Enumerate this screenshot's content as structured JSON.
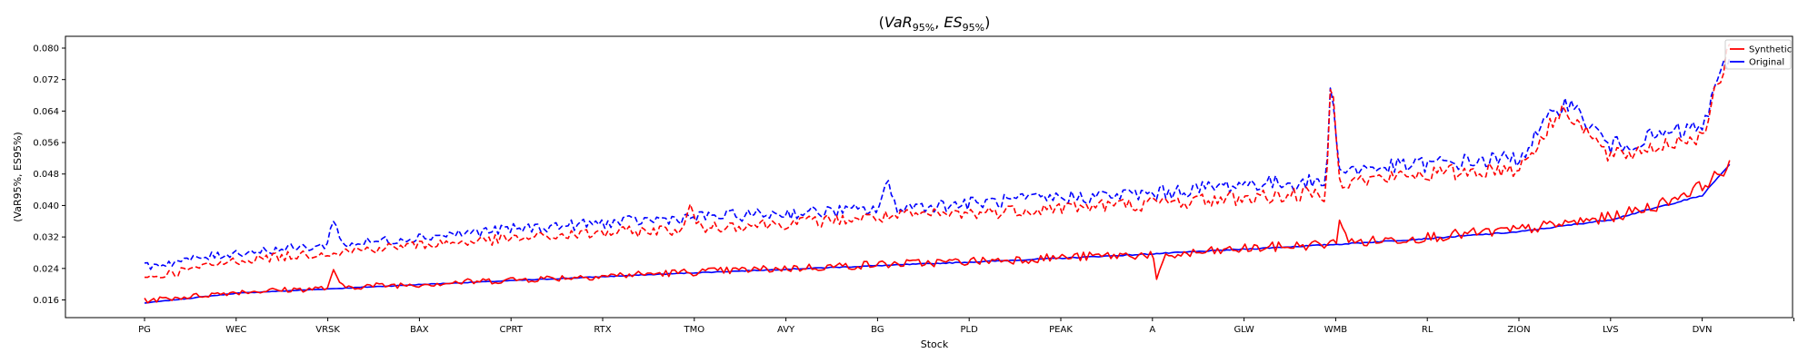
{
  "chart_data": {
    "type": "line",
    "title": "(VaR95%, ES95%)",
    "title_parts": {
      "open": "(",
      "var_main": "VaR",
      "var_sub": "95%",
      "sep": ", ",
      "es_main": "ES",
      "es_sub": "95%",
      "close": ")"
    },
    "xlabel": "Stock",
    "ylabel": "(VaR95%, ES95%)",
    "ylim": [
      0.0115,
      0.083
    ],
    "yticks": [
      "0.016",
      "0.024",
      "0.032",
      "0.040",
      "0.048",
      "0.056",
      "0.064",
      "0.072",
      "0.080"
    ],
    "xtick_labels": [
      "PG",
      "WEC",
      "VRSK",
      "BAX",
      "CPRT",
      "RTX",
      "TMO",
      "AVY",
      "BG",
      "PLD",
      "PEAK",
      "A",
      "GLW",
      "WMB",
      "RL",
      "ZION",
      "LVS",
      "DVN"
    ],
    "grid": false,
    "legend_position": "top-right",
    "legend": [
      {
        "name": "Synthetic",
        "color": "#ff0000"
      },
      {
        "name": "Original",
        "color": "#0000ff"
      }
    ],
    "colors": {
      "synthetic": "#ff0000",
      "original": "#0000ff"
    },
    "series": [
      {
        "name": "Original",
        "measure": "VaR95%",
        "style": "solid",
        "color": "#0000ff",
        "x_keys": [
          0,
          1,
          2,
          3,
          4,
          5,
          6,
          7,
          8,
          9,
          10,
          11,
          12,
          13,
          14,
          15,
          16,
          17,
          17.3
        ],
        "values": [
          0.0152,
          0.0177,
          0.0188,
          0.0199,
          0.0209,
          0.0219,
          0.0229,
          0.0238,
          0.0247,
          0.0256,
          0.0266,
          0.0277,
          0.0289,
          0.0301,
          0.0316,
          0.0333,
          0.0364,
          0.0425,
          0.0505
        ]
      },
      {
        "name": "Synthetic",
        "measure": "VaR95%",
        "style": "solid",
        "color": "#ff0000",
        "x_keys": [
          0,
          1,
          2,
          2.05,
          2.15,
          3,
          4,
          5,
          6,
          7,
          8,
          9,
          10,
          11,
          11.05,
          11.15,
          12,
          13,
          13.05,
          13.15,
          14,
          15,
          16,
          16.5,
          17,
          17.3
        ],
        "values": [
          0.0158,
          0.018,
          0.019,
          0.0236,
          0.0193,
          0.02,
          0.0211,
          0.0221,
          0.0231,
          0.024,
          0.025,
          0.0258,
          0.0268,
          0.0276,
          0.0205,
          0.0272,
          0.029,
          0.0303,
          0.037,
          0.0305,
          0.032,
          0.0338,
          0.037,
          0.04,
          0.045,
          0.05
        ]
      },
      {
        "name": "Original",
        "measure": "ES95%",
        "style": "dashed",
        "color": "#0000ff",
        "x_keys": [
          0,
          1,
          2,
          2.05,
          2.15,
          3,
          4,
          5,
          6,
          7,
          8,
          8.1,
          8.2,
          9,
          10,
          11,
          12,
          12.9,
          12.95,
          13.05,
          13.1,
          14,
          15,
          15.5,
          16,
          17,
          17.3
        ],
        "values": [
          0.0245,
          0.028,
          0.0298,
          0.038,
          0.03,
          0.032,
          0.034,
          0.0355,
          0.037,
          0.038,
          0.039,
          0.046,
          0.0395,
          0.0405,
          0.042,
          0.043,
          0.0455,
          0.046,
          0.074,
          0.047,
          0.049,
          0.0505,
          0.052,
          0.067,
          0.055,
          0.06,
          0.079
        ]
      },
      {
        "name": "Synthetic",
        "measure": "ES95%",
        "style": "dashed",
        "color": "#ff0000",
        "x_keys": [
          0,
          1,
          2,
          3,
          4,
          5,
          5.9,
          5.95,
          6.05,
          7,
          8,
          9,
          10,
          11,
          12,
          12.9,
          12.95,
          13.05,
          13.1,
          14,
          15,
          15.5,
          16,
          17,
          17.3
        ],
        "values": [
          0.0215,
          0.026,
          0.028,
          0.03,
          0.0315,
          0.033,
          0.034,
          0.0405,
          0.0345,
          0.0355,
          0.037,
          0.038,
          0.0395,
          0.0405,
          0.042,
          0.043,
          0.077,
          0.045,
          0.046,
          0.048,
          0.0495,
          0.065,
          0.052,
          0.058,
          0.08
        ]
      }
    ]
  }
}
